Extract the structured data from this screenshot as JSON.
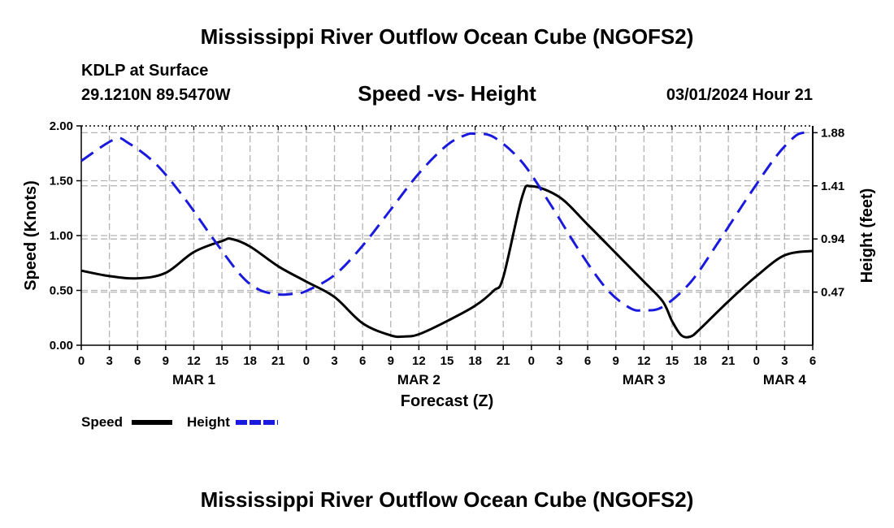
{
  "header": {
    "title": "Mississippi River Outflow Ocean Cube (NGOFS2)",
    "station": "KDLP at Surface",
    "coordinates": "29.1210N  89.5470W",
    "subtitle": "Speed -vs- Height",
    "datetime": "03/01/2024 Hour 21"
  },
  "footer": {
    "title": "Mississippi River Outflow Ocean Cube (NGOFS2)"
  },
  "chart_data": {
    "type": "line",
    "title": "Speed -vs- Height",
    "xlabel": "Forecast (Z)",
    "ylabel": "Speed (Knots)",
    "y2label": "Height (feet)",
    "x_unit": "forecast hours from 00Z MAR 1",
    "xlim": [
      0,
      78
    ],
    "ylim": [
      0,
      2.0
    ],
    "y2lim": [
      0.0,
      1.94
    ],
    "grid": true,
    "legend_position": "bottom-left",
    "x_tick_values": [
      0,
      3,
      6,
      9,
      12,
      15,
      18,
      21,
      24,
      27,
      30,
      33,
      36,
      39,
      42,
      45,
      48,
      51,
      54,
      57,
      60,
      63,
      66,
      69,
      72,
      75,
      78
    ],
    "x_tick_labels": [
      "0",
      "3",
      "6",
      "9",
      "12",
      "15",
      "18",
      "21",
      "0",
      "3",
      "6",
      "9",
      "12",
      "15",
      "18",
      "21",
      "0",
      "3",
      "6",
      "9",
      "12",
      "15",
      "18",
      "21",
      "0",
      "3",
      "6"
    ],
    "date_labels": [
      {
        "x": 12,
        "label": "MAR 1"
      },
      {
        "x": 36,
        "label": "MAR 2"
      },
      {
        "x": 60,
        "label": "MAR 3"
      },
      {
        "x": 75,
        "label": "MAR 4"
      }
    ],
    "y_tick_values": [
      0.0,
      0.5,
      1.0,
      1.5,
      2.0
    ],
    "y_tick_labels": [
      "0.00",
      "0.50",
      "1.00",
      "1.50",
      "2.00"
    ],
    "y2_tick_values": [
      0.47,
      0.94,
      1.41,
      1.88
    ],
    "y2_tick_labels": [
      "0.47",
      "0.94",
      "1.41",
      "1.88"
    ],
    "series": [
      {
        "name": "Speed",
        "axis": "left",
        "color": "#000000",
        "style": "solid",
        "x": [
          0,
          3,
          6,
          9,
          12,
          15,
          16,
          18,
          21,
          24,
          27,
          30,
          33,
          34.5,
          36,
          39,
          42,
          44,
          45,
          47,
          48,
          51,
          54,
          57,
          60,
          62,
          63,
          64,
          65,
          66,
          69,
          72,
          75,
          78
        ],
        "values": [
          0.68,
          0.63,
          0.61,
          0.66,
          0.85,
          0.95,
          0.97,
          0.9,
          0.72,
          0.58,
          0.44,
          0.2,
          0.09,
          0.08,
          0.1,
          0.22,
          0.36,
          0.5,
          0.62,
          1.35,
          1.45,
          1.35,
          1.1,
          0.84,
          0.58,
          0.4,
          0.22,
          0.09,
          0.08,
          0.15,
          0.4,
          0.63,
          0.82,
          0.86
        ]
      },
      {
        "name": "Height",
        "axis": "right",
        "color": "#1a1adf",
        "style": "dashed",
        "x": [
          0,
          3.5,
          5,
          8,
          11,
          14,
          17,
          19,
          21,
          22,
          23,
          24,
          27,
          30,
          33,
          36,
          39,
          41,
          42,
          44,
          47,
          50,
          53,
          56,
          58.5,
          60,
          62,
          65,
          68,
          71,
          74,
          76,
          77,
          78
        ],
        "values": [
          1.63,
          1.82,
          1.79,
          1.6,
          1.3,
          0.95,
          0.62,
          0.49,
          0.45,
          0.45,
          0.46,
          0.48,
          0.62,
          0.88,
          1.2,
          1.52,
          1.77,
          1.86,
          1.87,
          1.84,
          1.62,
          1.25,
          0.85,
          0.5,
          0.33,
          0.31,
          0.34,
          0.56,
          0.92,
          1.3,
          1.66,
          1.84,
          1.88,
          1.88
        ]
      }
    ]
  }
}
